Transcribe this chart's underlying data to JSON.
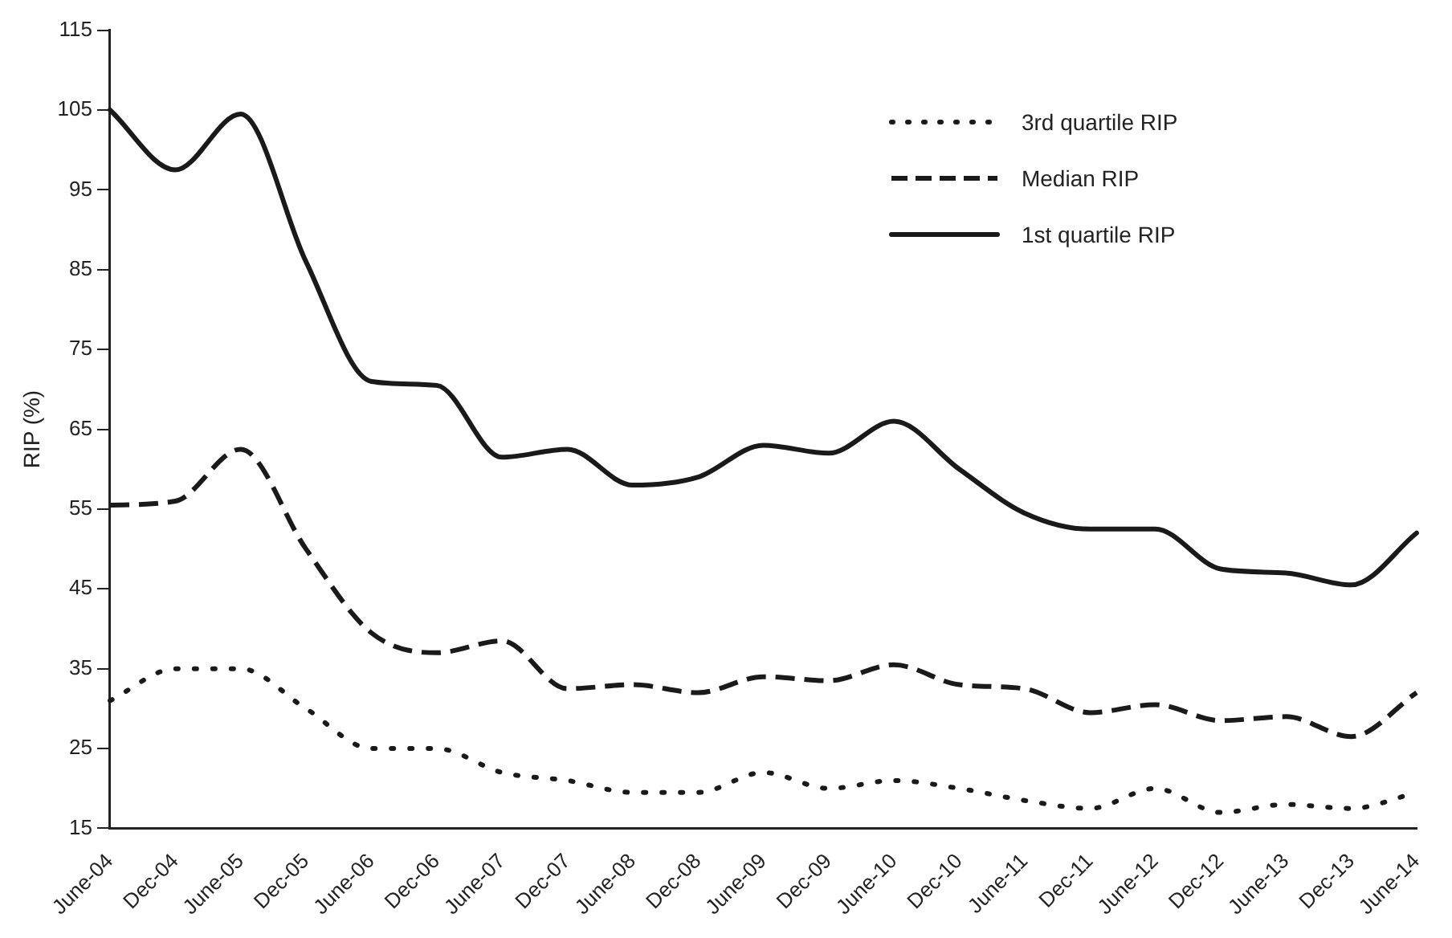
{
  "chart_data": {
    "type": "line",
    "ylabel": "RIP (%)",
    "categories": [
      "June-04",
      "Dec-04",
      "June-05",
      "Dec-05",
      "June-06",
      "Dec-06",
      "June-07",
      "Dec-07",
      "June-08",
      "Dec-08",
      "June-09",
      "Dec-09",
      "June-10",
      "Dec-10",
      "June-11",
      "Dec-11",
      "June-12",
      "Dec-12",
      "June-13",
      "Dec-13",
      "June-14"
    ],
    "series": [
      {
        "name": "3rd quartile RIP",
        "color": "#1a1a1a",
        "line_style": "dotted",
        "values": [
          31,
          35,
          35,
          30,
          25,
          25,
          22,
          21,
          19.5,
          19.5,
          22,
          20,
          21,
          20,
          18.5,
          17.5,
          20,
          17,
          18,
          17.5,
          19.5
        ]
      },
      {
        "name": "Median RIP",
        "color": "#1a1a1a",
        "line_style": "dashed",
        "values": [
          55.5,
          56,
          62.5,
          50,
          39.5,
          37,
          38.5,
          32.5,
          33,
          32,
          34,
          33.5,
          35.5,
          33,
          32.5,
          29.5,
          30.5,
          28.5,
          29,
          26.5,
          32
        ]
      },
      {
        "name": "1st quartile RIP",
        "color": "#1a1a1a",
        "line_style": "solid",
        "values": [
          105,
          97.5,
          104.5,
          86,
          71,
          70.5,
          61.5,
          62.5,
          58,
          59,
          63,
          62,
          66,
          60,
          54.5,
          52.5,
          52.5,
          47.5,
          47,
          45.5,
          52
        ]
      }
    ],
    "ylim": [
      15,
      115
    ],
    "yticks": [
      15,
      25,
      35,
      45,
      55,
      65,
      75,
      85,
      95,
      105,
      115
    ],
    "grid": false,
    "legend": "top right",
    "marker": "none"
  }
}
